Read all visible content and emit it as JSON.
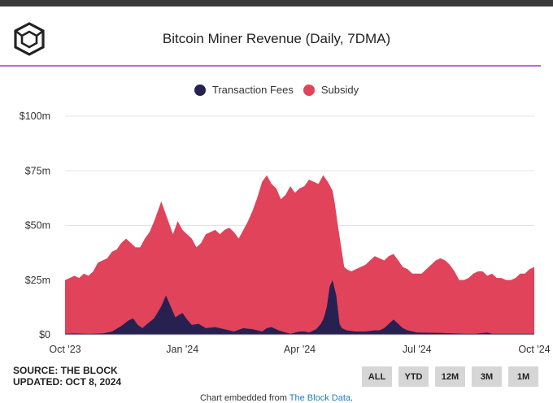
{
  "header": {
    "title": "Bitcoin Miner Revenue (Daily, 7DMA)",
    "logo_icon": "the-block-cube-icon"
  },
  "legend": [
    {
      "label": "Transaction Fees",
      "color": "#262150"
    },
    {
      "label": "Subsidy",
      "color": "#e0435a"
    }
  ],
  "footer": {
    "source": "SOURCE: THE BLOCK",
    "updated": "UPDATED: OCT 8, 2024",
    "range_buttons": [
      "ALL",
      "YTD",
      "12M",
      "3M",
      "1M"
    ],
    "embed_prefix": "Chart embedded from ",
    "embed_link": "The Block Data",
    "embed_suffix": "."
  },
  "chart_data": {
    "type": "area",
    "stacked": true,
    "title": "Bitcoin Miner Revenue (Daily, 7DMA)",
    "xlabel": "",
    "ylabel": "",
    "ylim": [
      0,
      100
    ],
    "y_unit": "millions USD",
    "y_ticks": [
      "$0",
      "$25m",
      "$50m",
      "$75m",
      "$100m"
    ],
    "y_tick_values": [
      0,
      25,
      50,
      75,
      100
    ],
    "x_ticks": [
      "Oct '23",
      "Jan '24",
      "Apr '24",
      "Jul '24",
      "Oct '24"
    ],
    "x_tick_positions": [
      0,
      0.25,
      0.5,
      0.75,
      1.0
    ],
    "grid": true,
    "legend_position": "top-center",
    "series": [
      {
        "name": "Transaction Fees",
        "color": "#262150",
        "points": [
          [
            0,
            0.5
          ],
          [
            0.02,
            0.6
          ],
          [
            0.05,
            0.4
          ],
          [
            0.08,
            0.6
          ],
          [
            0.1,
            1.5
          ],
          [
            0.12,
            4
          ],
          [
            0.135,
            6.5
          ],
          [
            0.145,
            7.5
          ],
          [
            0.155,
            4.5
          ],
          [
            0.165,
            3
          ],
          [
            0.175,
            5
          ],
          [
            0.19,
            7.5
          ],
          [
            0.205,
            13
          ],
          [
            0.215,
            18
          ],
          [
            0.225,
            13
          ],
          [
            0.235,
            8
          ],
          [
            0.25,
            10
          ],
          [
            0.26,
            7
          ],
          [
            0.27,
            4.5
          ],
          [
            0.285,
            5
          ],
          [
            0.3,
            3
          ],
          [
            0.32,
            3.5
          ],
          [
            0.34,
            2.5
          ],
          [
            0.36,
            1.5
          ],
          [
            0.38,
            3
          ],
          [
            0.4,
            2.5
          ],
          [
            0.42,
            1.5
          ],
          [
            0.43,
            3
          ],
          [
            0.44,
            3.5
          ],
          [
            0.455,
            2
          ],
          [
            0.47,
            1
          ],
          [
            0.48,
            0.5
          ],
          [
            0.49,
            1
          ],
          [
            0.5,
            1.5
          ],
          [
            0.51,
            1.5
          ],
          [
            0.52,
            1
          ],
          [
            0.535,
            2.5
          ],
          [
            0.545,
            5
          ],
          [
            0.552,
            8
          ],
          [
            0.558,
            13
          ],
          [
            0.564,
            22
          ],
          [
            0.57,
            25
          ],
          [
            0.578,
            18
          ],
          [
            0.585,
            5
          ],
          [
            0.59,
            3
          ],
          [
            0.6,
            2
          ],
          [
            0.62,
            1.5
          ],
          [
            0.64,
            1.5
          ],
          [
            0.66,
            2
          ],
          [
            0.67,
            2
          ],
          [
            0.68,
            3
          ],
          [
            0.69,
            5
          ],
          [
            0.7,
            7
          ],
          [
            0.71,
            5
          ],
          [
            0.72,
            3
          ],
          [
            0.73,
            2
          ],
          [
            0.75,
            1
          ],
          [
            0.8,
            0.8
          ],
          [
            0.85,
            0.5
          ],
          [
            0.875,
            0.5
          ],
          [
            0.9,
            1
          ],
          [
            0.91,
            0.5
          ],
          [
            0.95,
            0.5
          ],
          [
            1.0,
            0.5
          ]
        ]
      },
      {
        "name": "Subsidy",
        "color": "#e0435a",
        "total_points": [
          [
            0,
            25
          ],
          [
            0.01,
            26
          ],
          [
            0.02,
            27
          ],
          [
            0.03,
            26
          ],
          [
            0.04,
            28
          ],
          [
            0.05,
            27
          ],
          [
            0.06,
            29
          ],
          [
            0.07,
            33
          ],
          [
            0.08,
            34
          ],
          [
            0.09,
            35
          ],
          [
            0.1,
            38
          ],
          [
            0.11,
            39
          ],
          [
            0.12,
            42
          ],
          [
            0.13,
            44
          ],
          [
            0.14,
            42
          ],
          [
            0.15,
            40
          ],
          [
            0.16,
            40
          ],
          [
            0.17,
            44
          ],
          [
            0.18,
            47
          ],
          [
            0.19,
            52
          ],
          [
            0.2,
            58
          ],
          [
            0.205,
            61
          ],
          [
            0.21,
            58
          ],
          [
            0.22,
            52
          ],
          [
            0.23,
            46
          ],
          [
            0.24,
            52
          ],
          [
            0.25,
            48
          ],
          [
            0.26,
            46
          ],
          [
            0.27,
            44
          ],
          [
            0.28,
            40
          ],
          [
            0.29,
            42
          ],
          [
            0.3,
            46
          ],
          [
            0.31,
            47
          ],
          [
            0.32,
            48
          ],
          [
            0.33,
            46
          ],
          [
            0.34,
            48
          ],
          [
            0.35,
            49
          ],
          [
            0.36,
            47
          ],
          [
            0.37,
            44
          ],
          [
            0.38,
            48
          ],
          [
            0.39,
            52
          ],
          [
            0.4,
            57
          ],
          [
            0.41,
            63
          ],
          [
            0.42,
            70
          ],
          [
            0.43,
            73
          ],
          [
            0.44,
            69
          ],
          [
            0.45,
            67
          ],
          [
            0.46,
            62
          ],
          [
            0.47,
            64
          ],
          [
            0.48,
            68
          ],
          [
            0.49,
            65
          ],
          [
            0.5,
            67
          ],
          [
            0.51,
            68
          ],
          [
            0.52,
            71
          ],
          [
            0.53,
            70
          ],
          [
            0.54,
            69
          ],
          [
            0.55,
            73
          ],
          [
            0.56,
            70
          ],
          [
            0.57,
            66
          ],
          [
            0.575,
            60
          ],
          [
            0.58,
            52
          ],
          [
            0.585,
            45
          ],
          [
            0.59,
            38
          ],
          [
            0.595,
            31
          ],
          [
            0.6,
            30
          ],
          [
            0.61,
            29
          ],
          [
            0.62,
            30
          ],
          [
            0.63,
            31
          ],
          [
            0.64,
            32
          ],
          [
            0.65,
            34
          ],
          [
            0.66,
            36
          ],
          [
            0.67,
            35
          ],
          [
            0.68,
            34
          ],
          [
            0.69,
            36
          ],
          [
            0.7,
            37
          ],
          [
            0.71,
            34
          ],
          [
            0.72,
            31
          ],
          [
            0.73,
            30
          ],
          [
            0.74,
            28
          ],
          [
            0.75,
            28
          ],
          [
            0.76,
            28
          ],
          [
            0.77,
            30
          ],
          [
            0.78,
            32
          ],
          [
            0.79,
            34
          ],
          [
            0.8,
            35
          ],
          [
            0.81,
            34
          ],
          [
            0.82,
            32
          ],
          [
            0.83,
            29
          ],
          [
            0.84,
            25
          ],
          [
            0.85,
            25
          ],
          [
            0.86,
            26
          ],
          [
            0.87,
            28
          ],
          [
            0.88,
            29
          ],
          [
            0.89,
            29
          ],
          [
            0.9,
            27
          ],
          [
            0.91,
            28
          ],
          [
            0.92,
            26
          ],
          [
            0.93,
            26
          ],
          [
            0.94,
            25
          ],
          [
            0.95,
            25
          ],
          [
            0.96,
            26
          ],
          [
            0.97,
            28
          ],
          [
            0.98,
            28
          ],
          [
            0.99,
            30
          ],
          [
            1.0,
            31
          ]
        ]
      }
    ]
  }
}
